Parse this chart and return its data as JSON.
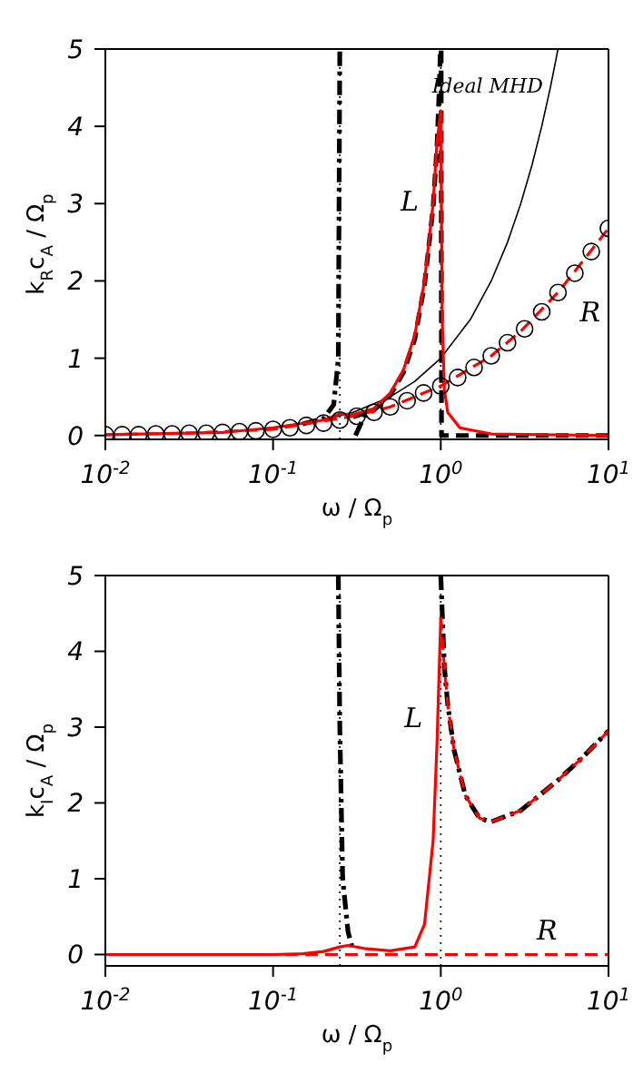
{
  "chart_data": [
    {
      "type": "line",
      "log": "x",
      "xlabel": "ω / Ω$_{p}$",
      "ylabel": "k$_{R}$c$_{A}$ / Ω$_{p}$",
      "xlim": [
        0.01,
        10
      ],
      "xticks": [
        {
          "value": 0.01,
          "label": "10$^{-2}$"
        },
        {
          "value": 0.1,
          "label": "10$^{-1}$"
        },
        {
          "value": 1,
          "label": "10$^{0}$"
        },
        {
          "value": 10,
          "label": "10$^{1}$"
        }
      ],
      "ylim": [
        -0.05,
        5
      ],
      "yticks": [
        0,
        1,
        2,
        3,
        4,
        5
      ],
      "ref_lines": [
        {
          "axis": "x",
          "value": 0.25,
          "color": "#000000",
          "line_style": "dotted"
        },
        {
          "axis": "x",
          "value": 1,
          "color": "#000000",
          "line_style": "dotted"
        }
      ],
      "annotations": [
        {
          "text": "Ideal MHD",
          "x": 4.5,
          "y": 4.5
        },
        {
          "text": "L",
          "x": 0.9,
          "y": 3.0
        },
        {
          "text": "R",
          "x": 5,
          "y": 1.85
        }
      ],
      "series": [
        {
          "type": "scatter",
          "marker": "circle",
          "color": "#000000",
          "x": [
            0.01,
            0.0126,
            0.0158,
            0.02,
            0.025,
            0.0316,
            0.04,
            0.05,
            0.063,
            0.079,
            0.1,
            0.126,
            0.158,
            0.2,
            0.25,
            0.316,
            0.4,
            0.5,
            0.63,
            0.79,
            1,
            1.26,
            1.58,
            2,
            2.5,
            3.16,
            4,
            5,
            6.3,
            7.9,
            10
          ],
          "values": [
            0.01,
            0.01,
            0.01,
            0.02,
            0.02,
            0.03,
            0.03,
            0.04,
            0.05,
            0.06,
            0.08,
            0.1,
            0.13,
            0.16,
            0.2,
            0.25,
            0.3,
            0.37,
            0.45,
            0.55,
            0.64,
            0.75,
            0.88,
            1.03,
            1.2,
            1.38,
            1.6,
            1.85,
            2.1,
            2.38,
            2.68
          ]
        },
        {
          "color": "#000000",
          "line_style": "solid",
          "x": [
            0.1,
            0.2,
            0.3,
            0.5,
            0.7,
            1,
            1.5,
            2,
            2.5,
            3,
            3.5,
            4,
            4.5,
            5
          ],
          "values": [
            0.1,
            0.2,
            0.3,
            0.5,
            0.7,
            1,
            1.5,
            2,
            2.5,
            3,
            3.5,
            4,
            4.5,
            5
          ]
        },
        {
          "color": "#000000",
          "line_style": "dashed",
          "x": [
            0.3,
            0.4,
            0.5,
            0.6,
            0.7,
            0.8,
            0.9,
            0.95,
            0.98,
            0.995,
            1.005,
            1.01,
            10
          ],
          "values": [
            0.24,
            0.33,
            0.52,
            0.82,
            1.25,
            1.95,
            2.95,
            3.75,
            4.5,
            5,
            5,
            0,
            0
          ]
        },
        {
          "color": "#000000",
          "line_style": "dashdot",
          "x": [
            0.15,
            0.2,
            0.23,
            0.245,
            0.25
          ],
          "values": [
            0.15,
            0.22,
            0.4,
            1,
            5
          ]
        },
        {
          "color": "#000000",
          "line_style": "dashdot",
          "x": [
            0.31,
            0.35,
            0.4
          ],
          "values": [
            0,
            0.25,
            0.33
          ]
        },
        {
          "color": "#ff0000",
          "line_style": "solid",
          "x": [
            0.01,
            0.05,
            0.1,
            0.2,
            0.25,
            0.3,
            0.4,
            0.5,
            0.6,
            0.7,
            0.8,
            0.9,
            0.95,
            1.0,
            1.02,
            1.05,
            1.1,
            1.3,
            2,
            10
          ],
          "values": [
            0.01,
            0.04,
            0.1,
            0.2,
            0.28,
            0.27,
            0.35,
            0.55,
            0.85,
            1.3,
            2.0,
            3.0,
            3.8,
            4.2,
            1.5,
            0.6,
            0.3,
            0.1,
            0.02,
            0
          ]
        },
        {
          "color": "#ff0000",
          "line_style": "dashed",
          "x": [
            0.01,
            0.03,
            0.1,
            0.3,
            0.5,
            1,
            2,
            3,
            5,
            7,
            10
          ],
          "values": [
            0.01,
            0.03,
            0.08,
            0.25,
            0.37,
            0.64,
            1.03,
            1.35,
            1.85,
            2.25,
            2.68
          ]
        }
      ]
    },
    {
      "type": "line",
      "log": "x",
      "xlabel": "ω / Ω$_{p}$",
      "ylabel": "k$_{I}$c$_{A}$ / Ω$_{p}$",
      "xlim": [
        0.01,
        10
      ],
      "xticks": [
        {
          "value": 0.01,
          "label": "10$^{-2}$"
        },
        {
          "value": 0.1,
          "label": "10$^{-1}$"
        },
        {
          "value": 1,
          "label": "10$^{0}$"
        },
        {
          "value": 10,
          "label": "10$^{1}$"
        }
      ],
      "ylim": [
        -0.15,
        5
      ],
      "yticks": [
        0,
        1,
        2,
        3,
        4,
        5
      ],
      "ref_lines": [
        {
          "axis": "x",
          "value": 0.25,
          "color": "#000000",
          "line_style": "dotted"
        },
        {
          "axis": "x",
          "value": 1,
          "color": "#000000",
          "line_style": "dotted"
        }
      ],
      "annotations": [
        {
          "text": "L",
          "x": 0.95,
          "y": 2.8
        },
        {
          "text": "R",
          "x": 4.3,
          "y": 0
        }
      ],
      "series": [
        {
          "color": "#000000",
          "line_style": "dashdot",
          "x": [
            0.245,
            0.25,
            0.26,
            0.28,
            0.3
          ],
          "values": [
            5,
            3,
            1,
            0.3,
            0.05
          ]
        },
        {
          "color": "#000000",
          "line_style": "dashdot",
          "x": [
            1.0,
            1.05,
            1.1,
            1.2,
            1.4,
            1.7,
            2,
            3,
            5,
            7,
            10
          ],
          "values": [
            5,
            3.8,
            3.3,
            2.7,
            2.1,
            1.8,
            1.75,
            1.9,
            2.3,
            2.6,
            2.95
          ]
        },
        {
          "color": "#ff0000",
          "line_style": "solid",
          "x": [
            0.01,
            0.1,
            0.15,
            0.2,
            0.25,
            0.28,
            0.35,
            0.5,
            0.7,
            0.8,
            0.9,
            0.95,
            1.0
          ],
          "values": [
            0,
            0,
            0.01,
            0.04,
            0.1,
            0.12,
            0.08,
            0.05,
            0.1,
            0.4,
            1.5,
            2.8,
            4.45
          ]
        },
        {
          "color": "#ff0000",
          "line_style": "dashed",
          "x": [
            1.0,
            1.05,
            1.1,
            1.2,
            1.4,
            1.7,
            2,
            3,
            5,
            7,
            10
          ],
          "values": [
            4.45,
            3.8,
            3.3,
            2.7,
            2.1,
            1.8,
            1.75,
            1.9,
            2.3,
            2.6,
            2.95
          ]
        },
        {
          "color": "#ff0000",
          "line_style": "dashed",
          "x": [
            0.01,
            4.3,
            10
          ],
          "values": [
            0,
            0,
            0
          ]
        }
      ]
    }
  ]
}
